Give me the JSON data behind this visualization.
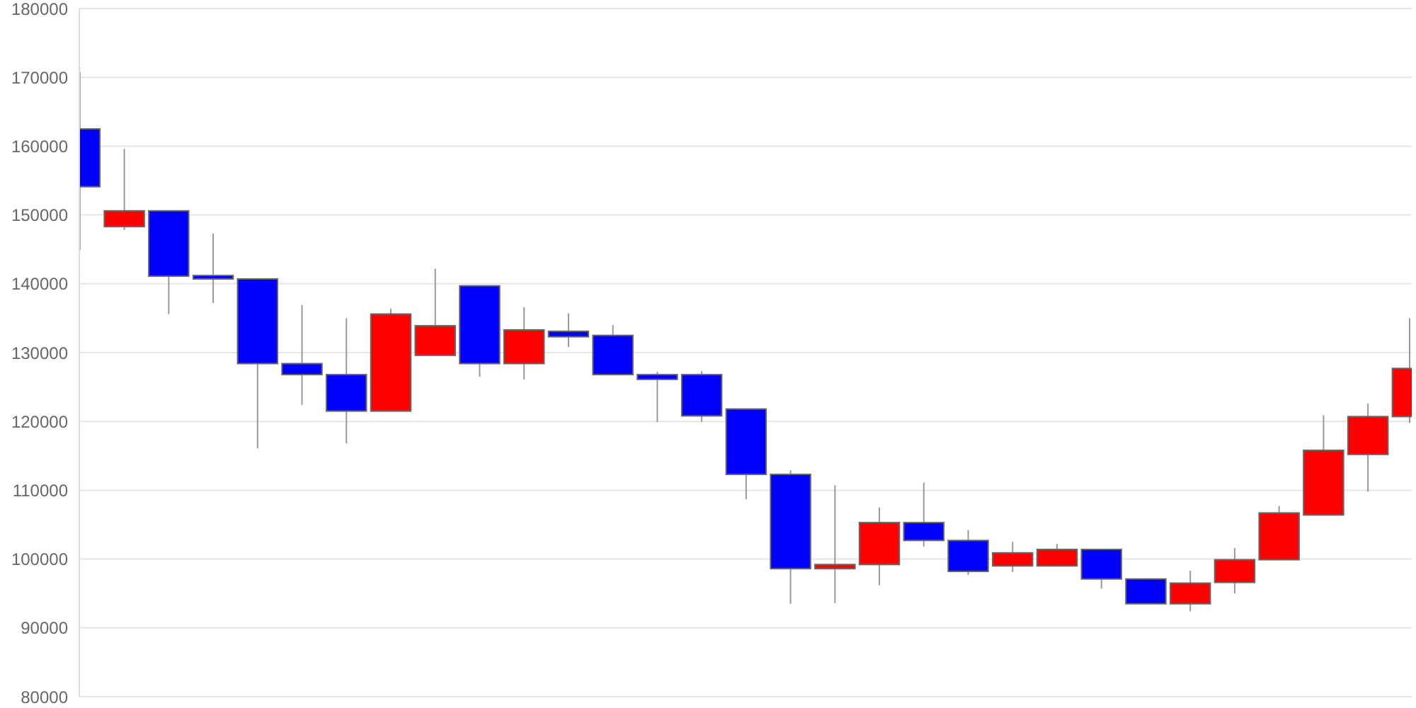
{
  "chart_data": {
    "type": "candlestick",
    "categories": [
      null,
      null,
      null,
      null,
      null,
      null,
      null,
      null,
      null,
      null,
      null,
      null,
      null,
      null,
      null,
      null,
      null,
      null,
      null,
      null,
      null,
      null,
      null,
      null,
      null,
      null,
      null,
      null,
      null,
      null,
      null
    ],
    "ohlc": [
      [
        162500,
        170800,
        144900,
        154100
      ],
      [
        148300,
        159600,
        147800,
        150600
      ],
      [
        150600,
        150600,
        135600,
        141100
      ],
      [
        141200,
        147300,
        137200,
        140700
      ],
      [
        140700,
        140700,
        116100,
        128400
      ],
      [
        128400,
        136900,
        122400,
        126800
      ],
      [
        126800,
        135000,
        116800,
        121500
      ],
      [
        121500,
        136400,
        121500,
        135600
      ],
      [
        129600,
        142200,
        129600,
        133900
      ],
      [
        139700,
        139700,
        126500,
        128400
      ],
      [
        128400,
        136600,
        126100,
        133300
      ],
      [
        133100,
        135700,
        130800,
        132300
      ],
      [
        132500,
        134000,
        126700,
        126800
      ],
      [
        126800,
        127200,
        119900,
        126100
      ],
      [
        126800,
        127300,
        119900,
        120800
      ],
      [
        121800,
        121800,
        108700,
        112300
      ],
      [
        112300,
        112900,
        93500,
        98600
      ],
      [
        98600,
        110700,
        93600,
        99200
      ],
      [
        99200,
        107500,
        96200,
        105300
      ],
      [
        105300,
        111100,
        101800,
        102700
      ],
      [
        102700,
        104200,
        97700,
        98200
      ],
      [
        99000,
        102500,
        98100,
        100900
      ],
      [
        99000,
        102200,
        99000,
        101400
      ],
      [
        101400,
        101400,
        95700,
        97100
      ],
      [
        97100,
        97100,
        93500,
        93500
      ],
      [
        93500,
        98300,
        92400,
        96500
      ],
      [
        96600,
        101600,
        95000,
        99900
      ],
      [
        99900,
        107700,
        99900,
        106700
      ],
      [
        106400,
        120900,
        106400,
        115800
      ],
      [
        115200,
        122600,
        109800,
        120700
      ],
      [
        120700,
        135000,
        119800,
        127700
      ]
    ],
    "colors": [
      "#0000ff",
      "#ff0000",
      "#0000ff",
      "#0000ff",
      "#0000ff",
      "#0000ff",
      "#0000ff",
      "#ff0000",
      "#ff0000",
      "#0000ff",
      "#ff0000",
      "#0000ff",
      "#0000ff",
      "#0000ff",
      "#0000ff",
      "#0000ff",
      "#0000ff",
      "#ff0000",
      "#ff0000",
      "#0000ff",
      "#0000ff",
      "#ff0000",
      "#ff0000",
      "#0000ff",
      "#0000ff",
      "#ff0000",
      "#ff0000",
      "#ff0000",
      "#ff0000",
      "#ff0000",
      "#ff0000"
    ],
    "ylim": [
      80000,
      180000
    ],
    "yticks": [
      80000,
      90000,
      100000,
      110000,
      120000,
      130000,
      140000,
      150000,
      160000,
      170000,
      180000
    ],
    "grid": "y",
    "tick_labels": "y"
  }
}
